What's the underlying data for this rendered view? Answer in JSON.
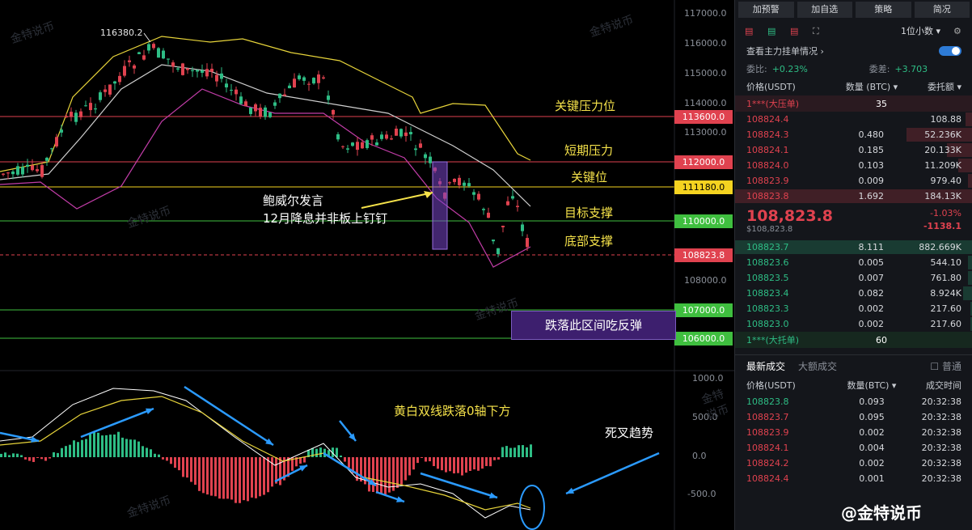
{
  "chart": {
    "peak_label": "116380.2",
    "price_ticks": [
      "117000.0",
      "116000.0",
      "115000.0",
      "114000.0",
      "113000.0",
      "108000.0"
    ],
    "macd_ticks": [
      "1000.0",
      "500.0",
      "0.0",
      "-500.0"
    ],
    "levels": [
      {
        "price": "113600.0",
        "label": "关键压力位",
        "color": "#e0424f"
      },
      {
        "price": "112000.0",
        "label": "短期压力",
        "color": "#e0424f"
      },
      {
        "price": "111180.0",
        "label": "关键位",
        "color": "#f5d320"
      },
      {
        "price": "110000.0",
        "label": "目标支撑",
        "color": "#3fbf3f"
      },
      {
        "price": "108823.8",
        "label": "底部支撑",
        "color": "#e0424f"
      },
      {
        "price": "107000.0",
        "label": "",
        "color": "#3fbf3f"
      },
      {
        "price": "106000.0",
        "label": "",
        "color": "#3fbf3f"
      }
    ],
    "annotation_powell_1": "鲍威尔发言",
    "annotation_powell_2": "12月降息并非板上钉钉",
    "zone_label": "跌落此区间吃反弹",
    "macd_note": "黄白双线跌落0轴下方",
    "death_cross": "死叉趋势",
    "watermark": "金特说币"
  },
  "panel": {
    "buttons": [
      "加预警",
      "加自选",
      "策略",
      "简况"
    ],
    "decimal_select": "1位小数",
    "order_view_label": "查看主力挂单情况",
    "bid_ratio_label": "委比:",
    "bid_ratio_value": "+0.23%",
    "bid_diff_label": "委差:",
    "bid_diff_value": "+3.703",
    "ob_headers": [
      "价格(USDT)",
      "数量 (BTC)",
      "委托额"
    ],
    "ask_band_label": "1***(大压单)",
    "ask_band_qty": "35",
    "asks": [
      {
        "price": "108824.4",
        "qty": "",
        "amt": "108.88",
        "fill": 0.03
      },
      {
        "price": "108824.3",
        "qty": "0.480",
        "amt": "52.236K",
        "fill": 0.28
      },
      {
        "price": "108824.1",
        "qty": "0.185",
        "amt": "20.133K",
        "fill": 0.11
      },
      {
        "price": "108824.0",
        "qty": "0.103",
        "amt": "11.209K",
        "fill": 0.06
      },
      {
        "price": "108823.9",
        "qty": "0.009",
        "amt": "979.40",
        "fill": 0.02
      },
      {
        "price": "108823.8",
        "qty": "1.692",
        "amt": "184.13K",
        "fill": 1.0
      }
    ],
    "last_price": "108,823.8",
    "last_price_sub": "$108,823.8",
    "change_pct": "-1.03%",
    "change_abs": "-1138.1",
    "bids": [
      {
        "price": "108823.7",
        "qty": "8.111",
        "amt": "882.669K",
        "fill": 1.0
      },
      {
        "price": "108823.6",
        "qty": "0.005",
        "amt": "544.10",
        "fill": 0.02
      },
      {
        "price": "108823.5",
        "qty": "0.007",
        "amt": "761.80",
        "fill": 0.02
      },
      {
        "price": "108823.4",
        "qty": "0.082",
        "amt": "8.924K",
        "fill": 0.04
      },
      {
        "price": "108823.3",
        "qty": "0.002",
        "amt": "217.60",
        "fill": 0.01
      },
      {
        "price": "108823.0",
        "qty": "0.002",
        "amt": "217.60",
        "fill": 0.01
      }
    ],
    "bid_band_label": "1***(大托单)",
    "bid_band_qty": "60",
    "tab_latest": "最新成交",
    "tab_large": "大额成交",
    "normal_label": "普通",
    "trade_headers": [
      "价格(USDT)",
      "数量(BTC)",
      "成交时间"
    ],
    "trades": [
      {
        "price": "108823.8",
        "qty": "0.093",
        "time": "20:32:38",
        "side": "buy"
      },
      {
        "price": "108823.7",
        "qty": "0.095",
        "time": "20:32:38",
        "side": "sell"
      },
      {
        "price": "108823.9",
        "qty": "0.002",
        "time": "20:32:38",
        "side": "sell"
      },
      {
        "price": "108824.1",
        "qty": "0.004",
        "time": "20:32:38",
        "side": "sell"
      },
      {
        "price": "108824.2",
        "qty": "0.002",
        "time": "20:32:38",
        "side": "sell"
      },
      {
        "price": "108824.4",
        "qty": "0.001",
        "time": "20:32:38",
        "side": "sell"
      }
    ],
    "brand": "@金特说币"
  }
}
